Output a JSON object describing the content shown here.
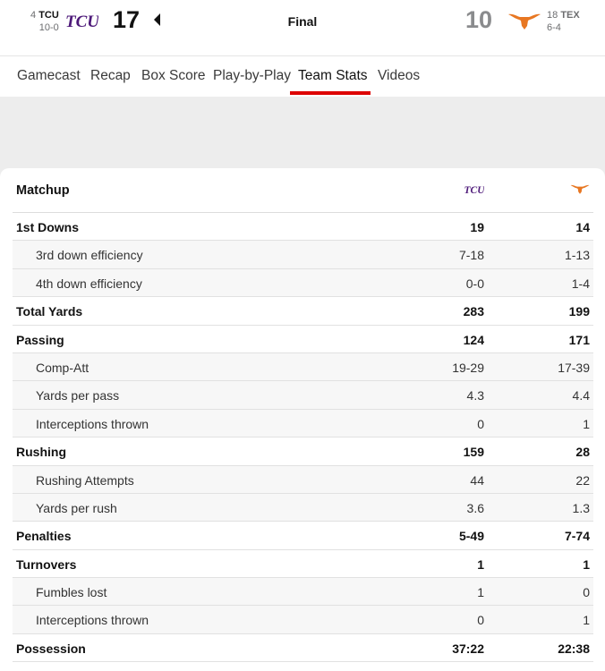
{
  "game": {
    "away": {
      "rank": "4",
      "abbr": "TCU",
      "record": "10-0",
      "score": "17",
      "logo": "tcu-logo",
      "color": "#4d1979"
    },
    "home": {
      "rank": "18",
      "abbr": "TEX",
      "record": "6-4",
      "score": "10",
      "logo": "texas-longhorn-logo",
      "color": "#e87722"
    },
    "status": "Final"
  },
  "tabs": [
    {
      "label": "Gamecast"
    },
    {
      "label": "Recap"
    },
    {
      "label": "Box Score"
    },
    {
      "label": "Play-by-Play"
    },
    {
      "label": "Team Stats",
      "active": true
    },
    {
      "label": "Videos"
    }
  ],
  "accent_color": "#dd0000",
  "stats": {
    "title": "Matchup",
    "rows": [
      {
        "label": "1st Downs",
        "tcu": "19",
        "tex": "14",
        "type": "main"
      },
      {
        "label": "3rd down efficiency",
        "tcu": "7-18",
        "tex": "1-13",
        "type": "sub"
      },
      {
        "label": "4th down efficiency",
        "tcu": "0-0",
        "tex": "1-4",
        "type": "sub"
      },
      {
        "label": "Total Yards",
        "tcu": "283",
        "tex": "199",
        "type": "main"
      },
      {
        "label": "Passing",
        "tcu": "124",
        "tex": "171",
        "type": "main"
      },
      {
        "label": "Comp-Att",
        "tcu": "19-29",
        "tex": "17-39",
        "type": "sub"
      },
      {
        "label": "Yards per pass",
        "tcu": "4.3",
        "tex": "4.4",
        "type": "sub"
      },
      {
        "label": "Interceptions thrown",
        "tcu": "0",
        "tex": "1",
        "type": "sub"
      },
      {
        "label": "Rushing",
        "tcu": "159",
        "tex": "28",
        "type": "main"
      },
      {
        "label": "Rushing Attempts",
        "tcu": "44",
        "tex": "22",
        "type": "sub"
      },
      {
        "label": "Yards per rush",
        "tcu": "3.6",
        "tex": "1.3",
        "type": "sub"
      },
      {
        "label": "Penalties",
        "tcu": "5-49",
        "tex": "7-74",
        "type": "main"
      },
      {
        "label": "Turnovers",
        "tcu": "1",
        "tex": "1",
        "type": "main"
      },
      {
        "label": "Fumbles lost",
        "tcu": "1",
        "tex": "0",
        "type": "sub"
      },
      {
        "label": "Interceptions thrown",
        "tcu": "0",
        "tex": "1",
        "type": "sub"
      },
      {
        "label": "Possession",
        "tcu": "37:22",
        "tex": "22:38",
        "type": "main"
      }
    ]
  }
}
